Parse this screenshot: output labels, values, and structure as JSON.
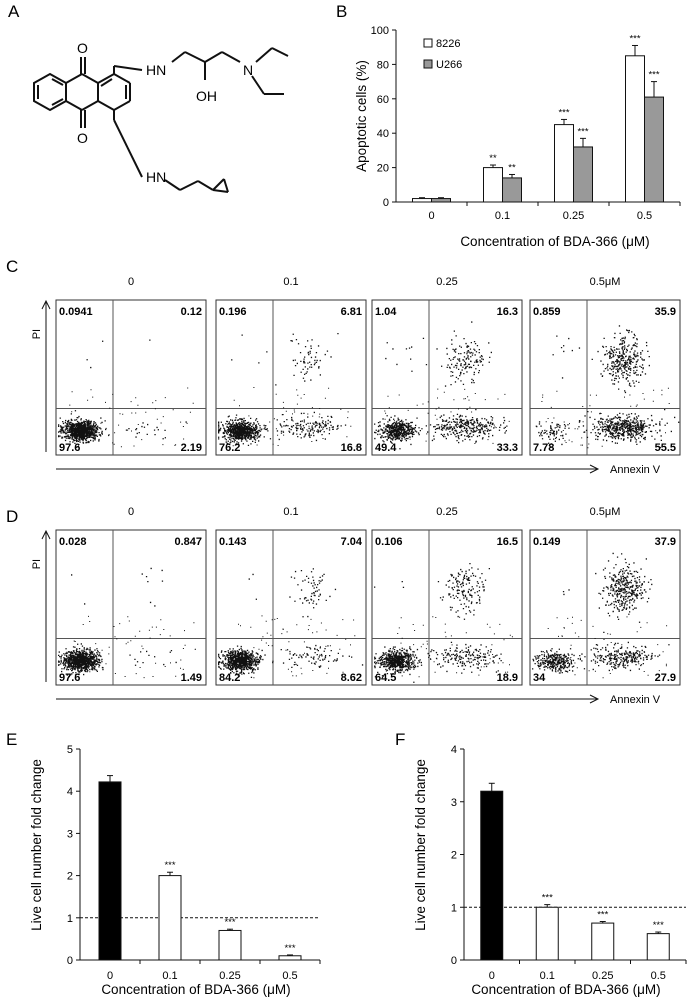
{
  "panels": {
    "A": "A",
    "B": "B",
    "C": "C",
    "D": "D",
    "E": "E",
    "F": "F"
  },
  "molecule": {
    "atoms": {
      "o_top": "O",
      "o_bottom": "O",
      "nh_top": "HN",
      "nh_bottom": "HN",
      "n": "N",
      "oh": "OH"
    }
  },
  "flow": {
    "pi_label": "PI",
    "annexin_label": "Annexin V",
    "concentrations": [
      "0",
      "0.1",
      "0.25",
      "0.5μM"
    ],
    "C": [
      {
        "ul": "0.0941",
        "ur": "0.12",
        "ll": "97.6",
        "lr": "2.19"
      },
      {
        "ul": "0.196",
        "ur": "6.81",
        "ll": "76.2",
        "lr": "16.8"
      },
      {
        "ul": "1.04",
        "ur": "16.3",
        "ll": "49.4",
        "lr": "33.3"
      },
      {
        "ul": "0.859",
        "ur": "35.9",
        "ll": "7.78",
        "lr": "55.5"
      }
    ],
    "D": [
      {
        "ul": "0.028",
        "ur": "0.847",
        "ll": "97.6",
        "lr": "1.49"
      },
      {
        "ul": "0.143",
        "ur": "7.04",
        "ll": "84.2",
        "lr": "8.62"
      },
      {
        "ul": "0.106",
        "ur": "16.5",
        "ll": "64.5",
        "lr": "18.9"
      },
      {
        "ul": "0.149",
        "ur": "37.9",
        "ll": "34",
        "lr": "27.9"
      }
    ]
  },
  "chart_data": [
    {
      "id": "B",
      "type": "bar",
      "categories": [
        "0",
        "0.1",
        "0.25",
        "0.5"
      ],
      "series": [
        {
          "name": "8226",
          "color": "#ffffff",
          "values": [
            2,
            20,
            45,
            85
          ],
          "errors": [
            0.5,
            1.5,
            3,
            6
          ],
          "stars": [
            "",
            "**",
            "***",
            "***"
          ]
        },
        {
          "name": "U266",
          "color": "#999999",
          "values": [
            2,
            14,
            32,
            61
          ],
          "errors": [
            0.5,
            2,
            5,
            9
          ],
          "stars": [
            "",
            "**",
            "***",
            "***"
          ]
        }
      ],
      "ylabel": "Apoptotic cells (%)",
      "xlabel": "Concentration of BDA-366 (μM)",
      "ylim": [
        0,
        100
      ],
      "yticks": [
        "0",
        "20",
        "40",
        "60",
        "80",
        "100"
      ],
      "legend": "top-left"
    },
    {
      "id": "E",
      "type": "bar",
      "categories": [
        "0",
        "0.1",
        "0.25",
        "0.5"
      ],
      "values": [
        4.22,
        2.0,
        0.7,
        0.1
      ],
      "errors": [
        0.15,
        0.08,
        0.03,
        0.02
      ],
      "colors": [
        "#000000",
        "#ffffff",
        "#ffffff",
        "#ffffff"
      ],
      "stars": [
        "",
        "***",
        "***",
        "***"
      ],
      "ylabel": "Live cell number fold change",
      "xlabel": "Concentration of BDA-366 (μM)",
      "ylim": [
        0,
        5
      ],
      "yticks": [
        "0",
        "1",
        "2",
        "3",
        "4",
        "5"
      ],
      "reference_line": 1
    },
    {
      "id": "F",
      "type": "bar",
      "categories": [
        "0",
        "0.1",
        "0.25",
        "0.5"
      ],
      "values": [
        3.2,
        1.0,
        0.7,
        0.5
      ],
      "errors": [
        0.15,
        0.05,
        0.03,
        0.03
      ],
      "colors": [
        "#000000",
        "#ffffff",
        "#ffffff",
        "#ffffff"
      ],
      "stars": [
        "",
        "***",
        "***",
        "***"
      ],
      "ylabel": "Live cell number fold change",
      "xlabel": "Concentration of BDA-366 (μM)",
      "ylim": [
        0,
        4
      ],
      "yticks": [
        "0",
        "1",
        "2",
        "3",
        "4"
      ],
      "reference_line": 1
    }
  ]
}
